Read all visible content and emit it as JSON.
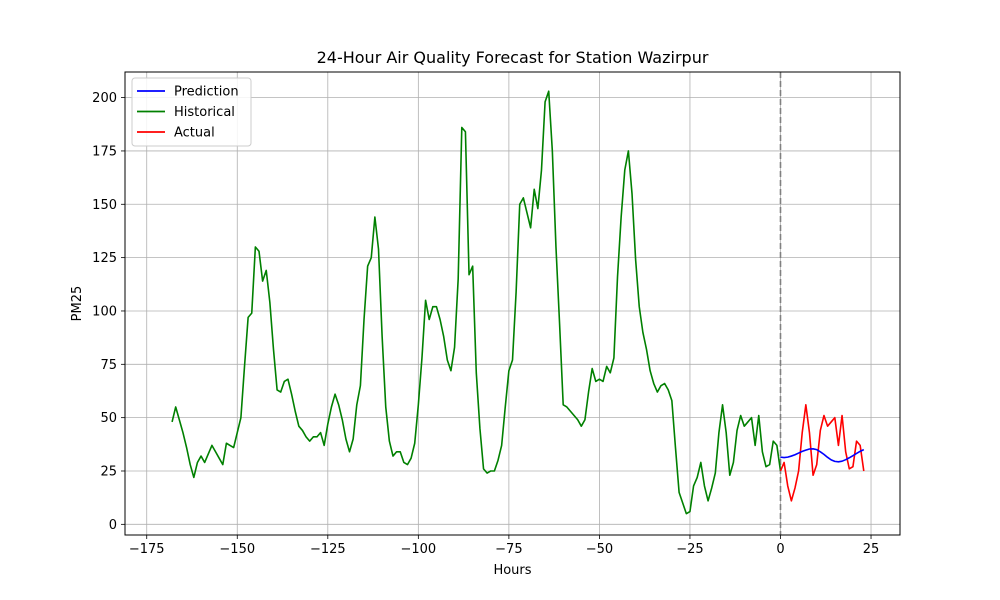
{
  "chart_data": {
    "type": "line",
    "title": "24-Hour Air Quality Forecast for Station Wazirpur",
    "xlabel": "Hours",
    "ylabel": "PM25",
    "xlim": [
      -181,
      33
    ],
    "ylim": [
      -5,
      212
    ],
    "xticks": [
      -175,
      -150,
      -125,
      -100,
      -75,
      -50,
      -25,
      0,
      25
    ],
    "yticks": [
      0,
      25,
      50,
      75,
      100,
      125,
      150,
      175,
      200
    ],
    "grid": true,
    "legend": {
      "placement": "top-left",
      "entries": [
        "Prediction",
        "Historical",
        "Actual"
      ]
    },
    "vline": {
      "x": 0,
      "color": "#808080",
      "style": "dashed"
    },
    "colors": {
      "Prediction": "#0000ff",
      "Historical": "#008000",
      "Actual": "#ff0000"
    },
    "series": [
      {
        "name": "Historical",
        "color": "#008000",
        "x": [
          -168,
          -167,
          -166,
          -165,
          -164,
          -163,
          -162,
          -161,
          -160,
          -159,
          -158,
          -157,
          -156,
          -155,
          -154,
          -153,
          -152,
          -151,
          -150,
          -149,
          -148,
          -147,
          -146,
          -145,
          -144,
          -143,
          -142,
          -141,
          -140,
          -139,
          -138,
          -137,
          -136,
          -135,
          -134,
          -133,
          -132,
          -131,
          -130,
          -129,
          -128,
          -127,
          -126,
          -125,
          -124,
          -123,
          -122,
          -121,
          -120,
          -119,
          -118,
          -117,
          -116,
          -115,
          -114,
          -113,
          -112,
          -111,
          -110,
          -109,
          -108,
          -107,
          -106,
          -105,
          -104,
          -103,
          -102,
          -101,
          -100,
          -99,
          -98,
          -97,
          -96,
          -95,
          -94,
          -93,
          -92,
          -91,
          -90,
          -89,
          -88,
          -87,
          -86,
          -85,
          -84,
          -83,
          -82,
          -81,
          -80,
          -79,
          -78,
          -77,
          -76,
          -75,
          -74,
          -73,
          -72,
          -71,
          -70,
          -69,
          -68,
          -67,
          -66,
          -65,
          -64,
          -63,
          -62,
          -61,
          -60,
          -59,
          -58,
          -57,
          -56,
          -55,
          -54,
          -53,
          -52,
          -51,
          -50,
          -49,
          -48,
          -47,
          -46,
          -45,
          -44,
          -43,
          -42,
          -41,
          -40,
          -39,
          -38,
          -37,
          -36,
          -35,
          -34,
          -33,
          -32,
          -31,
          -30,
          -29,
          -28,
          -27,
          -26,
          -25,
          -24,
          -23,
          -22,
          -21,
          -20,
          -19,
          -18,
          -17,
          -16,
          -15,
          -14,
          -13,
          -12,
          -11,
          -10,
          -9,
          -8,
          -7,
          -6,
          -5,
          -4,
          -3,
          -2,
          -1,
          0
        ],
        "values": [
          48,
          55,
          49,
          43,
          36,
          28,
          22,
          29,
          32,
          29,
          33,
          37,
          34,
          31,
          28,
          38,
          37,
          36,
          43,
          50,
          74,
          97,
          99,
          130,
          128,
          114,
          119,
          104,
          82,
          63,
          62,
          67,
          68,
          61,
          53,
          46,
          44,
          41,
          39,
          41,
          41,
          43,
          37,
          47,
          55,
          61,
          56,
          49,
          40,
          34,
          40,
          56,
          65,
          96,
          121,
          125,
          144,
          129,
          88,
          55,
          39,
          32,
          34,
          34,
          29,
          28,
          31,
          38,
          56,
          78,
          105,
          96,
          102,
          102,
          96,
          88,
          77,
          72,
          83,
          115,
          186,
          184,
          117,
          121,
          71,
          45,
          26,
          24,
          25,
          25,
          30,
          37,
          55,
          72,
          77,
          109,
          150,
          153,
          146,
          139,
          157,
          148,
          166,
          198,
          203,
          175,
          130,
          94,
          56,
          55,
          53,
          51,
          49,
          46,
          49,
          62,
          73,
          67,
          68,
          67,
          74,
          71,
          78,
          116,
          144,
          166,
          175,
          155,
          124,
          102,
          90,
          82,
          72,
          66,
          62,
          65,
          66,
          63,
          58,
          36,
          15,
          10,
          5,
          6,
          18,
          22,
          29,
          18,
          11,
          17,
          24,
          43,
          56,
          43,
          23,
          29,
          44,
          51,
          46,
          48,
          50,
          37,
          51,
          34,
          27,
          28,
          39,
          37,
          25
        ]
      },
      {
        "name": "Prediction",
        "color": "#0000ff",
        "x": [
          0,
          1,
          2,
          3,
          4,
          5,
          6,
          7,
          8,
          9,
          10,
          11,
          12,
          13,
          14,
          15,
          16,
          17,
          18,
          19,
          20,
          21,
          22,
          23
        ],
        "values": [
          31.5,
          31.3,
          31.5,
          32,
          32.6,
          33.4,
          34.2,
          34.8,
          35.3,
          35.4,
          35,
          34,
          32.8,
          31.4,
          30.2,
          29.5,
          29.3,
          29.6,
          30.3,
          31.2,
          32.2,
          33.2,
          34.2,
          35
        ]
      },
      {
        "name": "Actual",
        "color": "#ff0000",
        "x": [
          0,
          1,
          2,
          3,
          4,
          5,
          6,
          7,
          8,
          9,
          10,
          11,
          12,
          13,
          14,
          15,
          16,
          17,
          18,
          19,
          20,
          21,
          22,
          23
        ],
        "values": [
          25,
          29,
          18,
          11,
          17,
          25,
          43,
          56,
          43,
          23,
          28,
          44,
          51,
          46,
          48,
          50,
          37,
          51,
          34,
          26,
          27,
          39,
          37,
          25
        ]
      }
    ]
  }
}
